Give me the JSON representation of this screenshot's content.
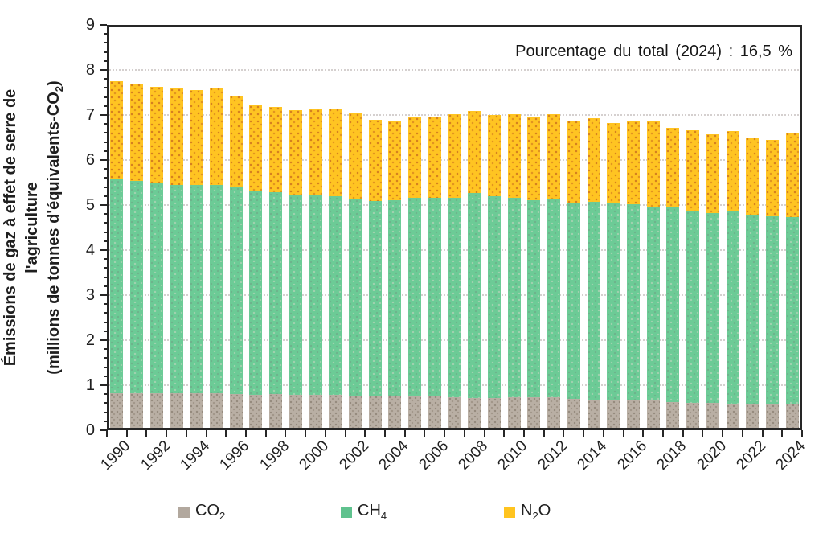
{
  "chart_data": {
    "type": "bar",
    "stacked": true,
    "annotation": "Pourcentage du total (2024) : 16,5 %",
    "ylabel_line1": "Émissions de gaz à effet de serre de",
    "ylabel_line2": "l'agriculture",
    "ylabel_line3_pre": "(millions de tonnes d'équivalents-CO",
    "ylabel_line3_sub": "2",
    "ylabel_line3_post": ")",
    "x": [
      1990,
      1991,
      1992,
      1993,
      1994,
      1995,
      1996,
      1997,
      1998,
      1999,
      2000,
      2001,
      2002,
      2003,
      2004,
      2005,
      2006,
      2007,
      2008,
      2009,
      2010,
      2011,
      2012,
      2013,
      2014,
      2015,
      2016,
      2017,
      2018,
      2019,
      2020,
      2021,
      2022,
      2023,
      2024
    ],
    "xtick_labels": [
      "1990",
      "1992",
      "1994",
      "1996",
      "1998",
      "2000",
      "2002",
      "2004",
      "2006",
      "2008",
      "2010",
      "2012",
      "2014",
      "2016",
      "2018",
      "2020",
      "2022",
      "2024"
    ],
    "series": [
      {
        "name": "CO2",
        "color": "#B2A89E",
        "values": [
          0.83,
          0.83,
          0.83,
          0.82,
          0.82,
          0.82,
          0.81,
          0.79,
          0.8,
          0.79,
          0.79,
          0.79,
          0.77,
          0.76,
          0.76,
          0.75,
          0.76,
          0.73,
          0.71,
          0.71,
          0.73,
          0.73,
          0.73,
          0.7,
          0.67,
          0.66,
          0.66,
          0.66,
          0.62,
          0.61,
          0.61,
          0.58,
          0.58,
          0.58,
          0.59
        ]
      },
      {
        "name": "CH4",
        "color": "#5FC28E",
        "values": [
          4.74,
          4.71,
          4.65,
          4.62,
          4.63,
          4.63,
          4.6,
          4.51,
          4.48,
          4.43,
          4.43,
          4.41,
          4.37,
          4.33,
          4.34,
          4.42,
          4.4,
          4.43,
          4.55,
          4.48,
          4.44,
          4.38,
          4.41,
          4.35,
          4.4,
          4.39,
          4.35,
          4.31,
          4.33,
          4.26,
          4.22,
          4.27,
          4.2,
          4.19,
          4.15
        ]
      },
      {
        "name": "N2O",
        "color": "#FFC41F",
        "values": [
          2.19,
          2.16,
          2.15,
          2.15,
          2.11,
          2.15,
          2.01,
          1.91,
          1.9,
          1.89,
          1.91,
          1.95,
          1.9,
          1.81,
          1.76,
          1.78,
          1.81,
          1.86,
          1.83,
          1.81,
          1.85,
          1.84,
          1.88,
          1.83,
          1.86,
          1.77,
          1.85,
          1.89,
          1.76,
          1.79,
          1.75,
          1.79,
          1.72,
          1.68,
          1.86
        ]
      }
    ],
    "ylim": [
      0,
      9
    ],
    "ytick_step": 1,
    "yticks": [
      "0",
      "1",
      "2",
      "3",
      "4",
      "5",
      "6",
      "7",
      "8",
      "9"
    ],
    "grid": "horizontal-dotted",
    "legend_position": "bottom"
  },
  "legend": {
    "items": [
      {
        "name": "co2",
        "color": "#B2A89E",
        "label_main": "CO",
        "label_sub": "2",
        "label_tail": ""
      },
      {
        "name": "ch4",
        "color": "#5FC28E",
        "label_main": "CH",
        "label_sub": "4",
        "label_tail": ""
      },
      {
        "name": "n2o",
        "color": "#FFC41F",
        "label_main": "N",
        "label_sub": "2",
        "label_tail": "O"
      }
    ]
  }
}
